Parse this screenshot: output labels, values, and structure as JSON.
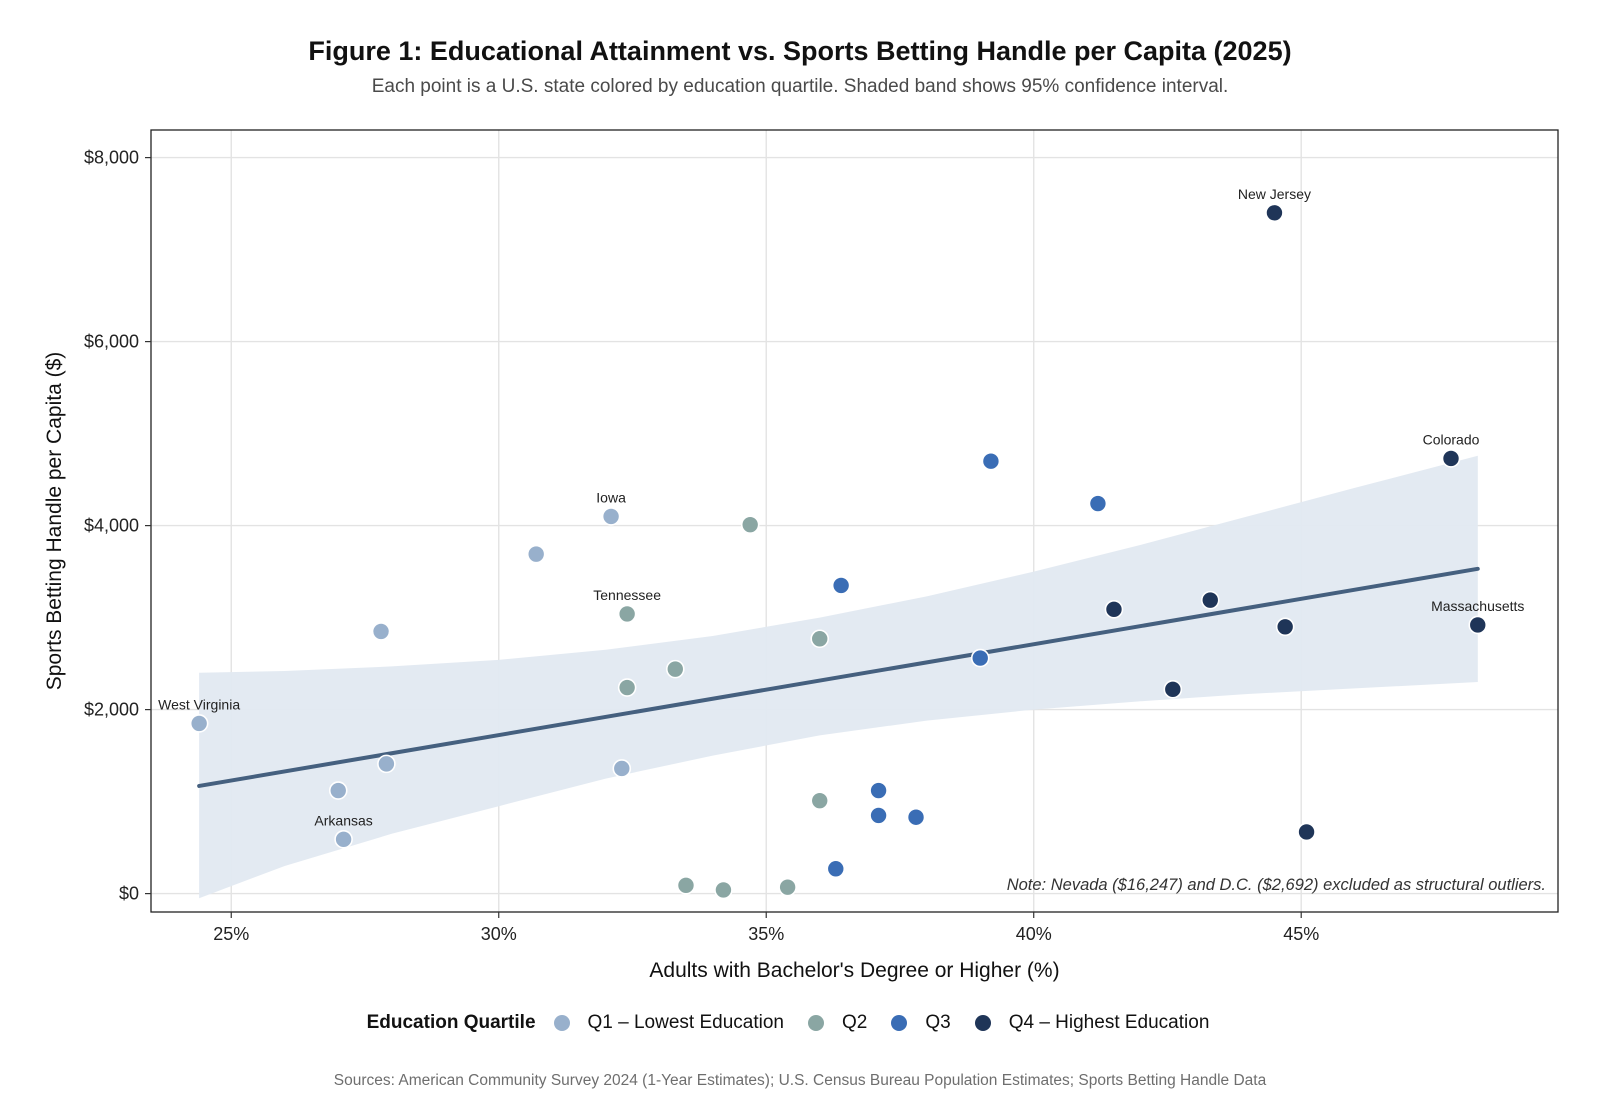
{
  "chart_data": {
    "type": "scatter",
    "title": "Figure 1: Educational Attainment vs. Sports Betting Handle per Capita (2025)",
    "subtitle": "Each point is a U.S. state colored by education quartile. Shaded band shows 95% confidence interval.",
    "xlabel": "Adults with Bachelor's Degree or Higher (%)",
    "ylabel": "Sports Betting Handle per Capita ($)",
    "xlim": [
      23.5,
      49.8
    ],
    "ylim": [
      -200,
      8300
    ],
    "x_ticks": [
      25,
      30,
      35,
      40,
      45
    ],
    "x_tick_labels": [
      "25%",
      "30%",
      "35%",
      "40%",
      "45%"
    ],
    "y_ticks": [
      0,
      2000,
      4000,
      6000,
      8000
    ],
    "y_tick_labels": [
      "$0",
      "$2,000",
      "$4,000",
      "$6,000",
      "$8,000"
    ],
    "grid": true,
    "legend_position": "bottom",
    "legend_title": "Education Quartile",
    "series": [
      {
        "name": "Q1 – Lowest Education",
        "color": "#98b0cc",
        "points": [
          {
            "x": 24.4,
            "y": 1850,
            "label": "West Virginia"
          },
          {
            "x": 27.0,
            "y": 1120
          },
          {
            "x": 27.1,
            "y": 590,
            "label": "Arkansas"
          },
          {
            "x": 27.8,
            "y": 2850
          },
          {
            "x": 27.9,
            "y": 1410
          },
          {
            "x": 30.7,
            "y": 3690
          },
          {
            "x": 32.1,
            "y": 4100,
            "label": "Iowa"
          },
          {
            "x": 32.3,
            "y": 1360
          }
        ]
      },
      {
        "name": "Q2",
        "color": "#8aa6a3",
        "points": [
          {
            "x": 32.4,
            "y": 3040,
            "label": "Tennessee"
          },
          {
            "x": 32.4,
            "y": 2240
          },
          {
            "x": 33.3,
            "y": 2440
          },
          {
            "x": 33.5,
            "y": 90
          },
          {
            "x": 34.2,
            "y": 40
          },
          {
            "x": 34.7,
            "y": 4010
          },
          {
            "x": 35.4,
            "y": 70
          },
          {
            "x": 36.0,
            "y": 2770
          },
          {
            "x": 36.0,
            "y": 1010
          }
        ]
      },
      {
        "name": "Q3",
        "color": "#3a6db5",
        "points": [
          {
            "x": 36.3,
            "y": 270
          },
          {
            "x": 36.4,
            "y": 3350
          },
          {
            "x": 37.1,
            "y": 1120
          },
          {
            "x": 37.1,
            "y": 850
          },
          {
            "x": 37.8,
            "y": 830
          },
          {
            "x": 39.0,
            "y": 2560
          },
          {
            "x": 39.2,
            "y": 4700
          },
          {
            "x": 41.2,
            "y": 4240
          }
        ]
      },
      {
        "name": "Q4 – Highest Education",
        "color": "#1f3558",
        "points": [
          {
            "x": 41.5,
            "y": 3090
          },
          {
            "x": 42.6,
            "y": 2220
          },
          {
            "x": 43.3,
            "y": 3190
          },
          {
            "x": 44.5,
            "y": 7400,
            "label": "New Jersey"
          },
          {
            "x": 44.7,
            "y": 2900
          },
          {
            "x": 45.1,
            "y": 670
          },
          {
            "x": 47.8,
            "y": 4730,
            "label": "Colorado"
          },
          {
            "x": 48.3,
            "y": 2920,
            "label": "Massachusetts"
          }
        ]
      }
    ],
    "trend_line": {
      "color": "#45607f",
      "x": [
        24.4,
        48.3
      ],
      "y": [
        1170,
        3530
      ]
    },
    "confidence_band": {
      "color": "#e1e9f1",
      "x": [
        24.4,
        26,
        28,
        30,
        32,
        34,
        36,
        38,
        40,
        42,
        44,
        46,
        48.3
      ],
      "lower": [
        -50,
        300,
        650,
        950,
        1250,
        1500,
        1720,
        1880,
        2000,
        2090,
        2170,
        2230,
        2300
      ],
      "upper": [
        2400,
        2420,
        2470,
        2540,
        2650,
        2800,
        3000,
        3230,
        3500,
        3790,
        4100,
        4410,
        4760
      ]
    },
    "annotation": "Note: Nevada ($16,247) and D.C. ($2,692) excluded as structural outliers."
  },
  "source": "Sources: American Community Survey 2024 (1-Year Estimates); U.S. Census Bureau Population Estimates; Sports Betting Handle Data"
}
